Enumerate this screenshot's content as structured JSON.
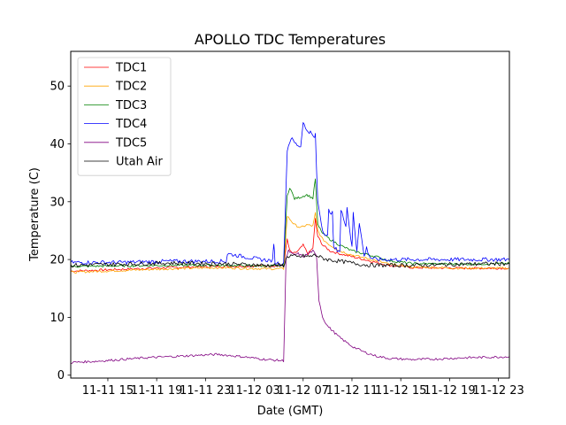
{
  "chart_data": {
    "type": "line",
    "title": "APOLLO TDC Temperatures",
    "xlabel": "Date (GMT)",
    "ylabel": "Temperature (C)",
    "x_units": "hours since 11-11 00:00 GMT",
    "xlim": [
      11.96,
      47.9
    ],
    "ylim": [
      -0.5,
      56
    ],
    "yticks": [
      0,
      10,
      20,
      30,
      40,
      50
    ],
    "xticks": [
      {
        "value": 15,
        "label": "11-11 15"
      },
      {
        "value": 19,
        "label": "11-11 19"
      },
      {
        "value": 23,
        "label": "11-11 23"
      },
      {
        "value": 27,
        "label": "11-12 03"
      },
      {
        "value": 31,
        "label": "11-12 07"
      },
      {
        "value": 35,
        "label": "11-12 11"
      },
      {
        "value": 39,
        "label": "11-12 15"
      },
      {
        "value": 43,
        "label": "11-12 19"
      },
      {
        "value": 47,
        "label": "11-12 23"
      }
    ],
    "grid": false,
    "legend_position": "top-left",
    "series": [
      {
        "name": "TDC1",
        "color": "#ff0000",
        "x": [
          11.96,
          16,
          20,
          24,
          28,
          29.4,
          29.7,
          29.9,
          30.2,
          30.6,
          31.0,
          31.4,
          31.8,
          32.0,
          32.2,
          32.6,
          33.2,
          34,
          35,
          36,
          37,
          38,
          40,
          44,
          47.9
        ],
        "y": [
          18.0,
          18.3,
          18.6,
          18.8,
          18.9,
          18.9,
          23.5,
          21.5,
          21.0,
          21.5,
          22.5,
          21.0,
          22.0,
          27.0,
          24.0,
          22.5,
          21.5,
          21.0,
          20.5,
          20.0,
          19.5,
          19.0,
          18.6,
          18.5,
          18.5
        ]
      },
      {
        "name": "TDC2",
        "color": "#ffa500",
        "x": [
          11.96,
          16,
          20,
          24,
          28,
          29.4,
          29.7,
          29.9,
          30.3,
          30.8,
          31.3,
          31.8,
          32.0,
          32.2,
          32.6,
          33.2,
          34,
          35,
          36,
          37,
          38,
          40,
          44,
          47.9
        ],
        "y": [
          17.8,
          18.1,
          18.4,
          18.6,
          18.4,
          18.4,
          27.5,
          27.0,
          26.0,
          25.5,
          26.0,
          25.8,
          28.0,
          25.0,
          23.5,
          22.5,
          21.5,
          20.8,
          20.3,
          19.8,
          19.2,
          18.7,
          18.5,
          18.5
        ]
      },
      {
        "name": "TDC3",
        "color": "#008000",
        "x": [
          11.96,
          16,
          20,
          24,
          28,
          29.4,
          29.7,
          29.9,
          30.3,
          30.8,
          31.3,
          31.8,
          32.0,
          32.2,
          32.6,
          33.2,
          34,
          35,
          36,
          37,
          38,
          40,
          44,
          47.9
        ],
        "y": [
          18.8,
          18.9,
          19.0,
          19.0,
          18.9,
          18.9,
          31.0,
          32.5,
          30.5,
          30.8,
          31.2,
          30.6,
          34.0,
          26.0,
          24.5,
          23.5,
          22.5,
          21.5,
          21.0,
          20.5,
          19.8,
          19.3,
          19.2,
          19.3
        ]
      },
      {
        "name": "TDC4",
        "color": "#0000ff",
        "x": [
          11.96,
          16,
          20,
          24.7,
          24.8,
          27.5,
          28.5,
          28.6,
          28.7,
          29.4,
          29.7,
          30.0,
          30.4,
          30.8,
          31.0,
          31.2,
          31.6,
          31.9,
          32.0,
          32.2,
          32.6,
          33.0,
          33.1,
          33.4,
          33.5,
          34.0,
          34.1,
          34.5,
          34.6,
          35.0,
          35.1,
          35.4,
          35.6,
          36.0,
          36.2,
          36.5,
          37,
          40,
          44,
          47.9
        ],
        "y": [
          19.5,
          19.5,
          19.7,
          19.7,
          21.0,
          20.0,
          19.8,
          23.0,
          19.5,
          19.2,
          39.0,
          41.0,
          40.0,
          39.5,
          44.0,
          42.5,
          42.0,
          41.0,
          41.5,
          30.0,
          25.0,
          24.0,
          28.5,
          28.0,
          22.0,
          21.5,
          28.5,
          26.0,
          29.0,
          22.0,
          28.0,
          21.5,
          26.5,
          20.5,
          22.0,
          20.3,
          20.0,
          20.0,
          20.0,
          20.0
        ]
      },
      {
        "name": "TDC5",
        "color": "#800080",
        "x": [
          11.96,
          14,
          18,
          22,
          24,
          26,
          28,
          29.4,
          29.6,
          29.8,
          30.2,
          30.6,
          31.0,
          31.4,
          31.8,
          32.1,
          32.3,
          32.6,
          33.0,
          33.5,
          34,
          35,
          36,
          37,
          38,
          40,
          42,
          44,
          47.9
        ],
        "y": [
          2.2,
          2.4,
          3.0,
          3.4,
          3.6,
          3.2,
          2.7,
          2.5,
          20.0,
          21.5,
          20.8,
          21.0,
          20.5,
          21.0,
          21.5,
          20.5,
          13.0,
          10.0,
          8.5,
          7.5,
          6.5,
          5.0,
          4.0,
          3.3,
          2.9,
          2.7,
          2.8,
          3.0,
          3.2
        ]
      },
      {
        "name": "Utah Air",
        "color": "#000000",
        "x": [
          11.96,
          16,
          20,
          24,
          28,
          29.4,
          29.7,
          30.0,
          30.5,
          31.0,
          31.5,
          32.0,
          32.5,
          33,
          34,
          35,
          36,
          37,
          40,
          44,
          47.9
        ],
        "y": [
          19.0,
          19.2,
          19.4,
          19.3,
          19.0,
          19.0,
          20.5,
          20.7,
          20.4,
          20.6,
          20.5,
          20.8,
          20.3,
          20.0,
          19.7,
          19.4,
          19.1,
          19.0,
          19.0,
          19.2,
          19.3
        ]
      }
    ]
  }
}
